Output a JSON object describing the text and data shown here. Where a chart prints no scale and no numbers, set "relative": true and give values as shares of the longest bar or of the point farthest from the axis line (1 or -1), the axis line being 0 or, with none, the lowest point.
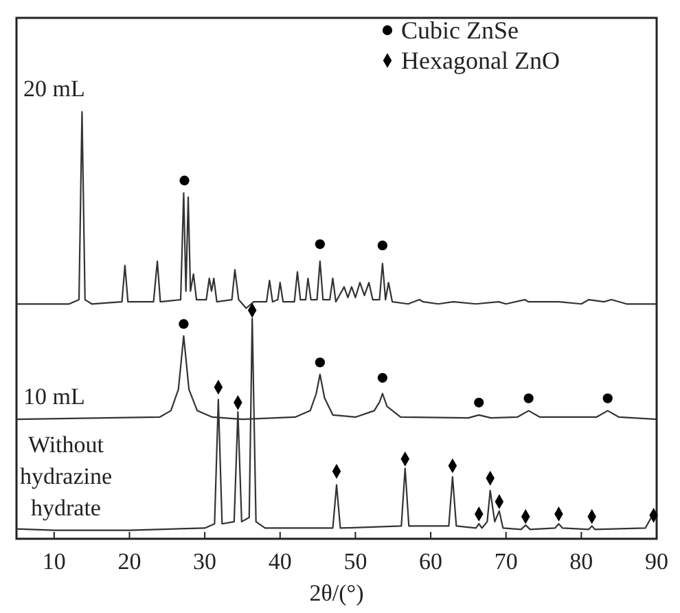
{
  "chart_data": {
    "type": "line",
    "relative": true,
    "xlabel": "2θ/(°)",
    "xlim": [
      5,
      90
    ],
    "xticks": [
      10,
      20,
      30,
      40,
      50,
      60,
      70,
      80,
      90
    ],
    "tick_labels": "x",
    "grid": false,
    "legend": "top right",
    "series": [
      {
        "name": "20 mL",
        "color": "#333333",
        "x": [
          5,
          12,
          13.3,
          13.7,
          14.1,
          15,
          19.0,
          19.4,
          19.8,
          23.2,
          23.7,
          24.1,
          26.8,
          27.2,
          27.5,
          27.8,
          28.1,
          28.5,
          28.9,
          30.2,
          30.6,
          30.9,
          31.2,
          31.6,
          33.6,
          34.0,
          34.5,
          35.5,
          36.5,
          38.2,
          38.6,
          39.0,
          39.7,
          40.0,
          40.4,
          41.9,
          42.3,
          42.7,
          43.4,
          43.7,
          44.1,
          44.9,
          45.3,
          45.7,
          46.6,
          47.0,
          47.4,
          48.5,
          49,
          49.5,
          50,
          50.6,
          51.2,
          51.8,
          52.3,
          53.2,
          53.6,
          54.0,
          54.4,
          54.9,
          57,
          58.5,
          59,
          61,
          63,
          66,
          69,
          70,
          72.5,
          73,
          77,
          80,
          81,
          83,
          84,
          86,
          90
        ],
        "values": [
          0.55,
          0.55,
          0.56,
          1.0,
          0.56,
          0.55,
          0.555,
          0.64,
          0.555,
          0.555,
          0.65,
          0.555,
          0.56,
          0.81,
          0.58,
          0.8,
          0.58,
          0.62,
          0.56,
          0.56,
          0.61,
          0.58,
          0.61,
          0.555,
          0.56,
          0.63,
          0.56,
          0.54,
          0.555,
          0.555,
          0.605,
          0.555,
          0.56,
          0.6,
          0.555,
          0.555,
          0.625,
          0.56,
          0.56,
          0.61,
          0.56,
          0.56,
          0.65,
          0.56,
          0.56,
          0.61,
          0.555,
          0.59,
          0.565,
          0.59,
          0.565,
          0.6,
          0.57,
          0.6,
          0.56,
          0.56,
          0.645,
          0.56,
          0.6,
          0.555,
          0.55,
          0.56,
          0.555,
          0.55,
          0.555,
          0.55,
          0.555,
          0.55,
          0.56,
          0.555,
          0.555,
          0.55,
          0.56,
          0.555,
          0.56,
          0.55,
          0.55
        ]
      },
      {
        "name": "10 mL",
        "color": "#333333",
        "x": [
          5,
          24,
          25.5,
          26.5,
          27.2,
          27.9,
          29,
          31,
          35,
          42,
          44,
          44.8,
          45.3,
          45.9,
          47,
          50,
          52.5,
          53.2,
          53.6,
          54.2,
          56,
          65,
          66.4,
          68,
          71.5,
          73,
          74.5,
          82,
          83.5,
          85,
          90
        ],
        "values": [
          0.28,
          0.285,
          0.3,
          0.35,
          0.475,
          0.35,
          0.3,
          0.285,
          0.28,
          0.285,
          0.3,
          0.34,
          0.385,
          0.33,
          0.29,
          0.285,
          0.3,
          0.32,
          0.34,
          0.31,
          0.285,
          0.283,
          0.29,
          0.283,
          0.285,
          0.3,
          0.285,
          0.285,
          0.3,
          0.285,
          0.28
        ]
      },
      {
        "name": "Without hydrazine hydrate",
        "color": "#333333",
        "x": [
          5,
          10,
          20,
          30,
          31.3,
          31.8,
          32.3,
          33.9,
          34.4,
          34.9,
          35.9,
          36.3,
          36.8,
          38,
          47,
          47.5,
          48,
          56.1,
          56.6,
          57.1,
          62.4,
          62.9,
          63.4,
          66,
          66.4,
          66.8,
          67.5,
          67.9,
          68.5,
          69.1,
          69.6,
          72,
          72.6,
          73.2,
          76.5,
          77,
          77.5,
          81,
          81.4,
          81.8,
          88.5,
          89.6,
          90
        ],
        "values": [
          0.023,
          0.02,
          0.02,
          0.025,
          0.035,
          0.326,
          0.035,
          0.04,
          0.297,
          0.04,
          0.05,
          0.516,
          0.04,
          0.025,
          0.025,
          0.126,
          0.025,
          0.03,
          0.165,
          0.03,
          0.03,
          0.145,
          0.03,
          0.025,
          0.035,
          0.025,
          0.04,
          0.113,
          0.04,
          0.065,
          0.025,
          0.022,
          0.032,
          0.022,
          0.025,
          0.035,
          0.025,
          0.022,
          0.03,
          0.022,
          0.025,
          0.06,
          0.05
        ]
      },
      {
        "name": "Cubic ZnSe",
        "type": "scatter",
        "marker": "circle",
        "color": "#000000",
        "x": [
          27.3,
          45.3,
          53.6,
          27.2,
          45.3,
          53.6,
          66.4,
          73,
          83.5
        ],
        "values": [
          0.839,
          0.69,
          0.687,
          0.503,
          0.413,
          0.377,
          0.319,
          0.329,
          0.329
        ]
      },
      {
        "name": "Hexagonal ZnO",
        "type": "scatter",
        "marker": "diamond",
        "color": "#000000",
        "x": [
          31.8,
          34.4,
          36.3,
          47.5,
          56.6,
          62.9,
          66.4,
          67.9,
          69.1,
          72.6,
          77,
          81.4,
          89.6
        ],
        "values": [
          0.355,
          0.319,
          0.535,
          0.158,
          0.187,
          0.171,
          0.058,
          0.142,
          0.087,
          0.052,
          0.058,
          0.052,
          0.055
        ]
      }
    ]
  }
}
